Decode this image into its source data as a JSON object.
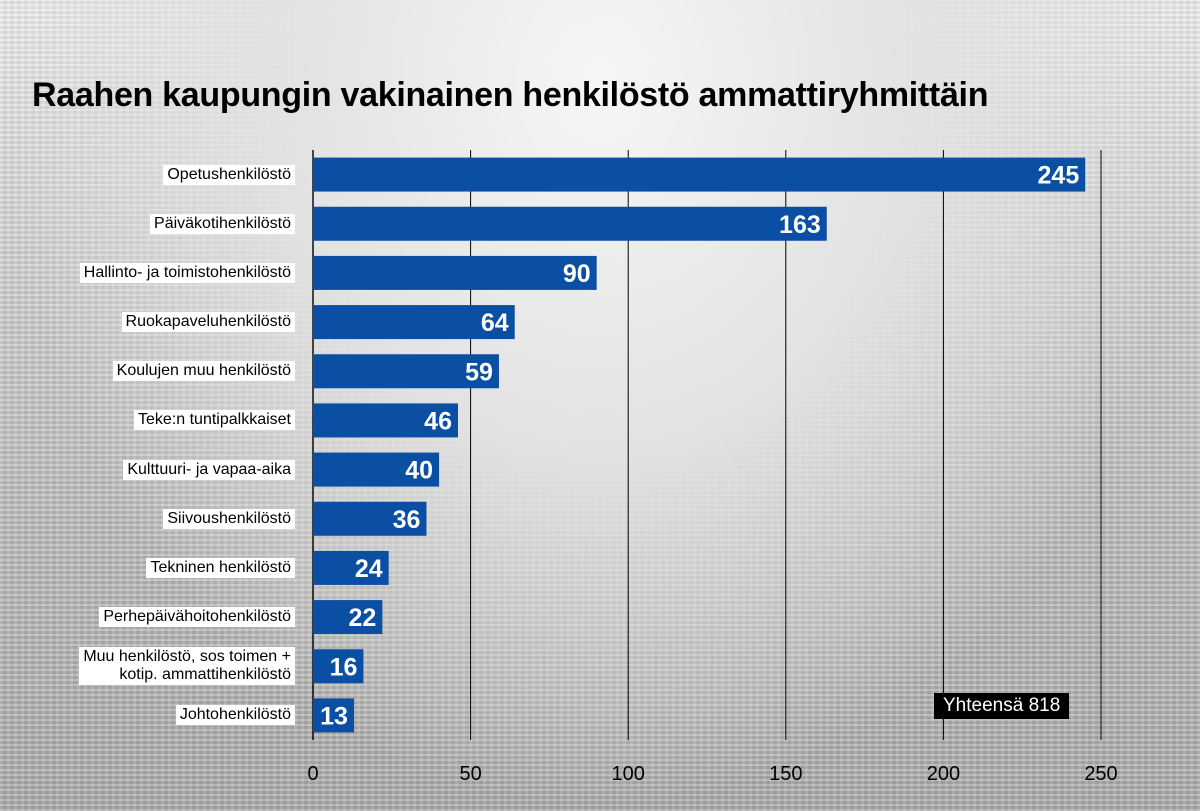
{
  "chart_data": {
    "type": "bar",
    "orientation": "horizontal",
    "title": "Raahen kaupungin vakinainen henkilöstö ammattiryhmittäin",
    "categories": [
      "Opetushenkilöstö",
      "Päiväkotihenkilöstö",
      "Hallinto- ja toimistohenkilöstö",
      "Ruokapaveluhenkilöstö",
      "Koulujen muu henkilöstö",
      "Teke:n tuntipalkkaiset",
      "Kulttuuri- ja vapaa-aika",
      "Siivoushenkilöstö",
      "Tekninen henkilöstö",
      "Perhepäivähoitohenkilöstö",
      "Muu henkilöstö, sos toimen +\nkotip. ammattihenkilöstö",
      "Johtohenkilöstö"
    ],
    "values": [
      245,
      163,
      90,
      64,
      59,
      46,
      40,
      36,
      24,
      22,
      16,
      13
    ],
    "xlim": [
      0,
      250
    ],
    "xticks": [
      0,
      50,
      100,
      150,
      200,
      250
    ],
    "grid": true,
    "bar_color": "#0a4fa3",
    "annotation": "Yhteensä 818"
  }
}
